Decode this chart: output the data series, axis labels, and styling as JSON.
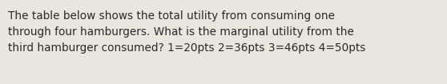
{
  "text_lines": [
    "The table below shows the total utility from consuming one",
    "through four hamburgers. What is the marginal utility from the",
    "third hamburger consumed? 1=20pts 2=36pts 3=46pts 4=50pts"
  ],
  "background_color": "#e8e6e0",
  "text_color": "#2a2a2a",
  "font_size": 9.8,
  "fig_width": 5.58,
  "fig_height": 1.05,
  "dpi": 100
}
